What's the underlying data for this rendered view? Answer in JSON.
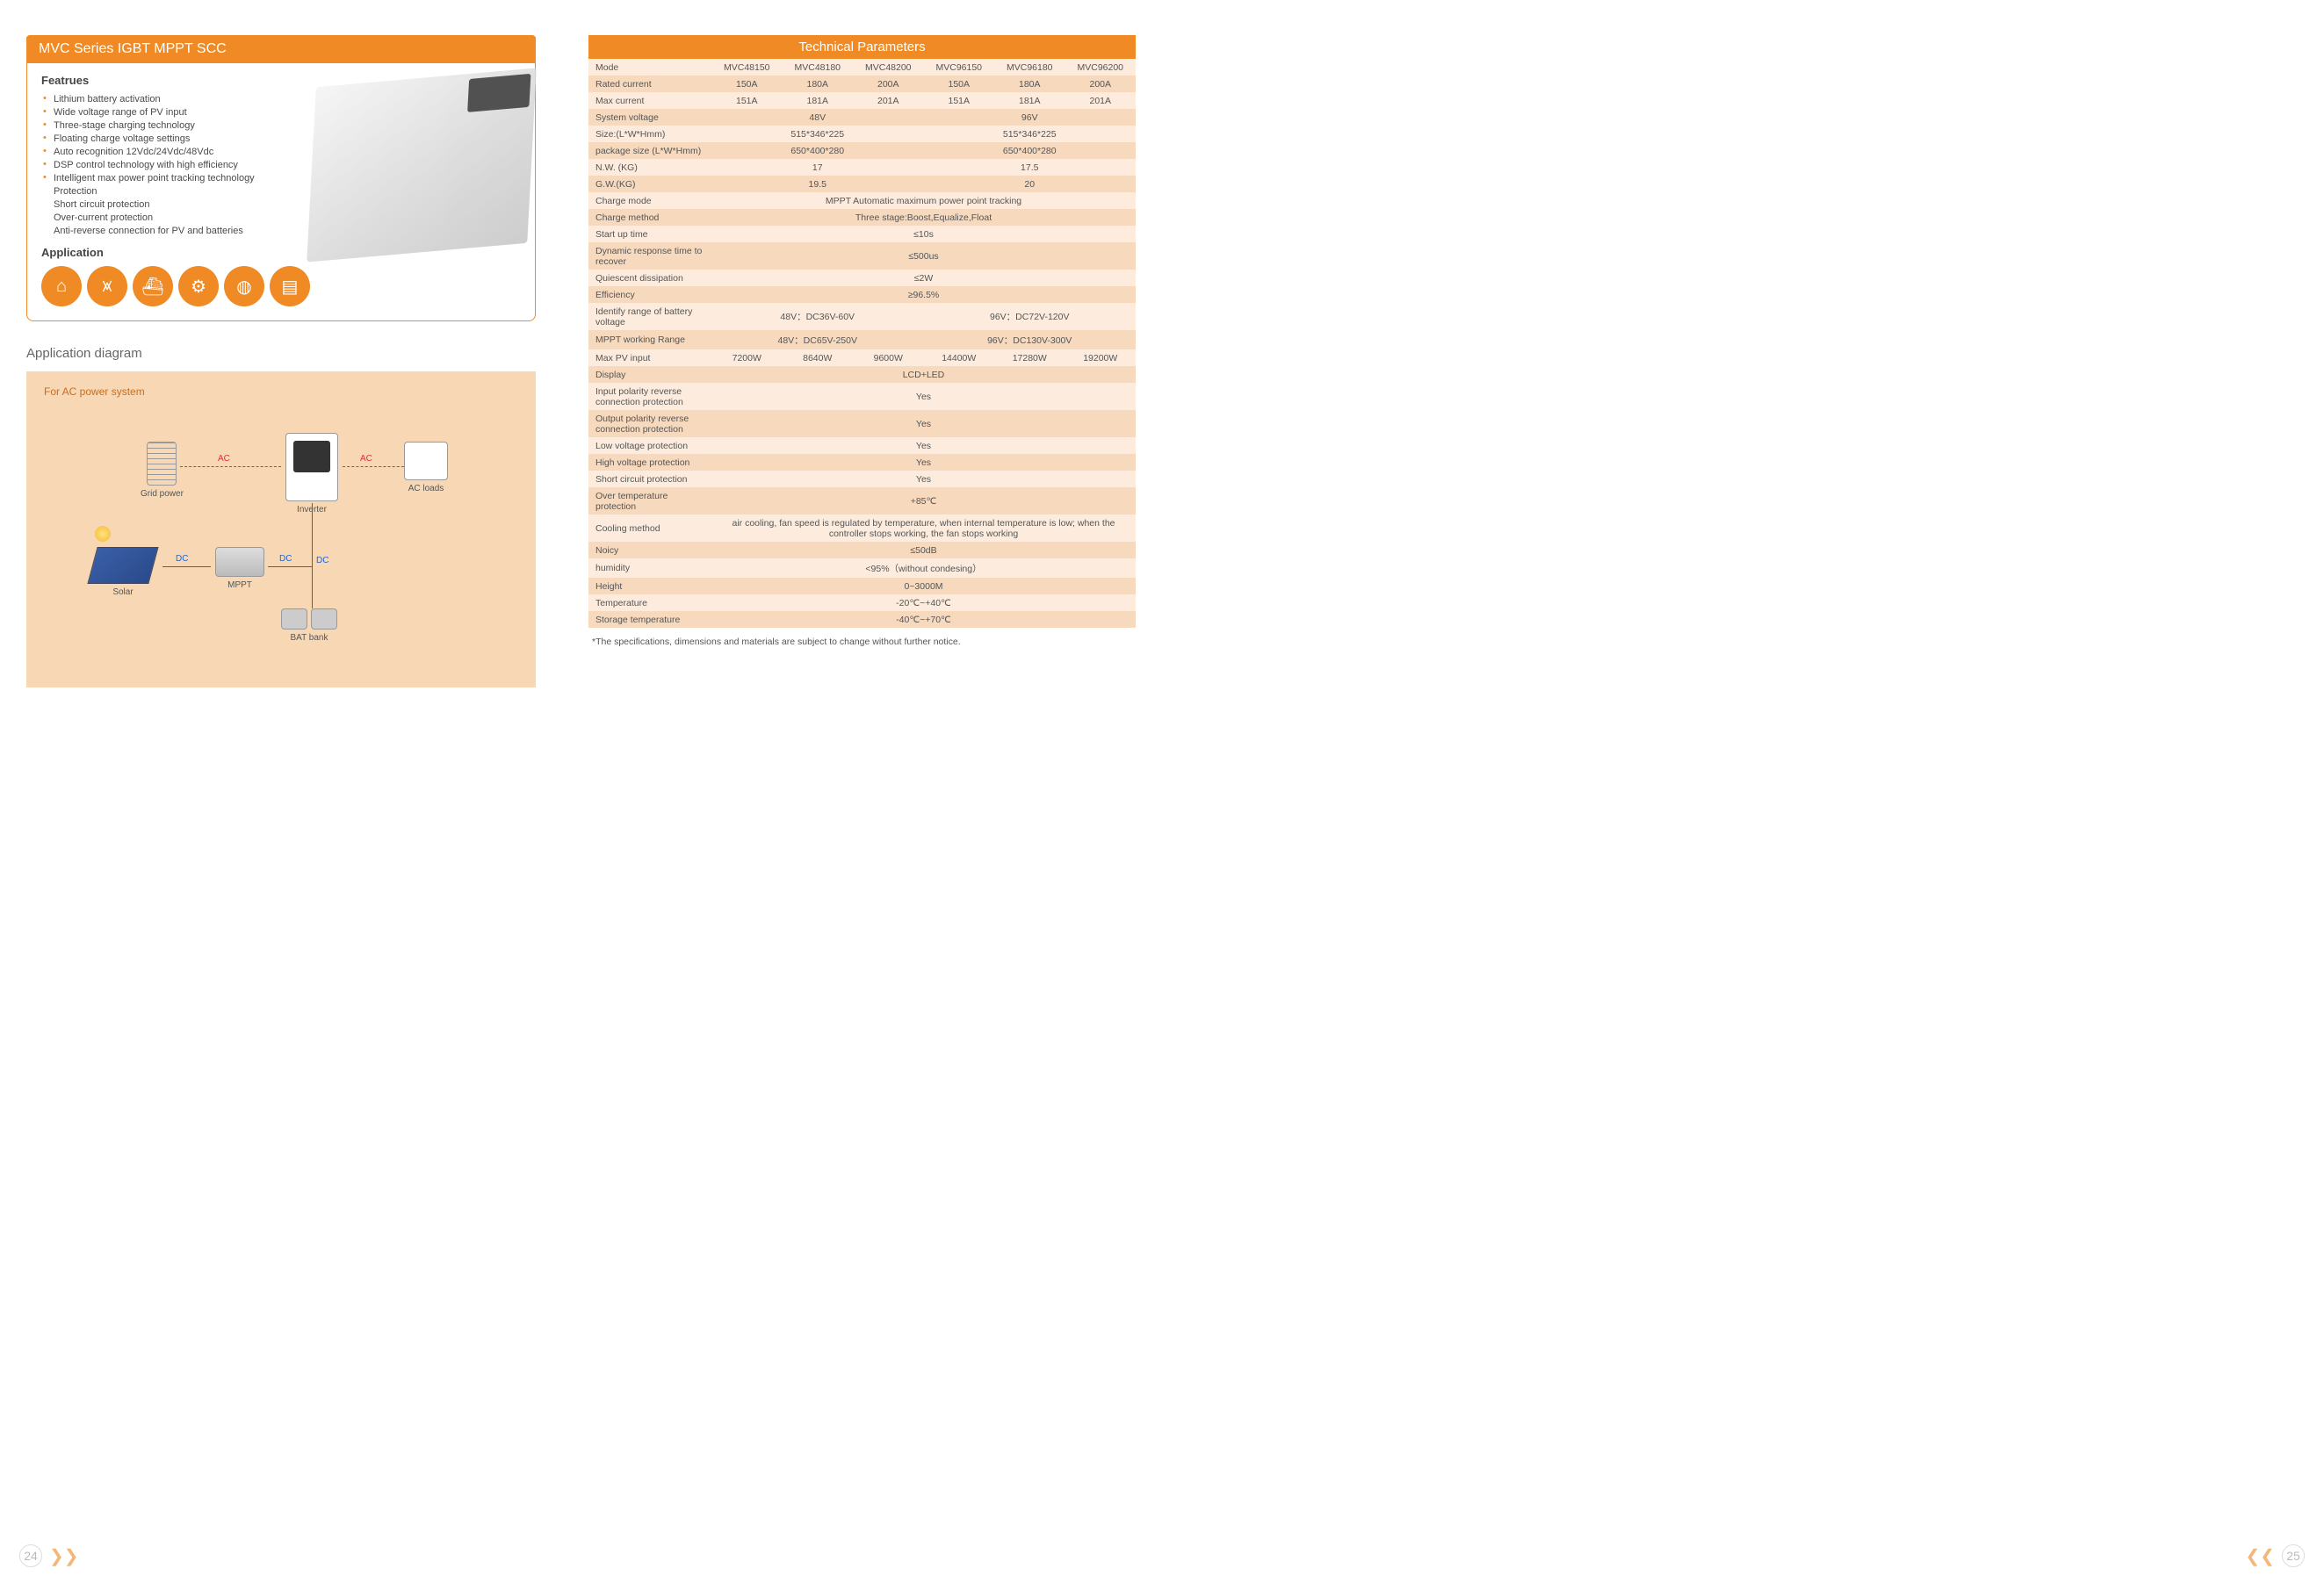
{
  "colors": {
    "accent": "#f08a24",
    "panel_bg": "#f8d7b5",
    "row_dark": "#f7d9bd",
    "row_light": "#fdecdd",
    "text": "#4a4a4a"
  },
  "left": {
    "title": "MVC Series IGBT MPPT SCC",
    "features_heading": "Featrues",
    "features": [
      "Lithium battery activation",
      "Wide voltage range of PV input",
      "Three-stage charging technology",
      "Floating charge voltage settings",
      "Auto recognition 12Vdc/24Vdc/48Vdc",
      "DSP control technology with high efficiency",
      "Intelligent max power point tracking technology"
    ],
    "features_nobullet": [
      "Protection",
      "Short circuit protection",
      "Over-current protection",
      "Anti-reverse connection for PV and batteries"
    ],
    "application_heading": "Application",
    "app_icons": [
      "home-icon",
      "tower-icon",
      "ship-icon",
      "factory-icon",
      "tank-icon",
      "building-icon"
    ],
    "diagram_heading": "Application diagram",
    "diagram_title": "For AC power system",
    "diagram_nodes": {
      "grid": "Grid power",
      "inverter": "Inverter",
      "acloads": "AC loads",
      "solar": "Solar",
      "mppt": "MPPT",
      "bat": "BAT bank",
      "ac": "AC",
      "dc": "DC"
    }
  },
  "table": {
    "title": "Technical Parameters",
    "models": [
      "MVC48150",
      "MVC48180",
      "MVC48200",
      "MVC96150",
      "MVC96180",
      "MVC96200"
    ],
    "rows": [
      {
        "label": "Mode",
        "cells": [
          "MVC48150",
          "MVC48180",
          "MVC48200",
          "MVC96150",
          "MVC96180",
          "MVC96200"
        ],
        "span": [
          1,
          1,
          1,
          1,
          1,
          1
        ]
      },
      {
        "label": "Rated current",
        "cells": [
          "150A",
          "180A",
          "200A",
          "150A",
          "180A",
          "200A"
        ],
        "span": [
          1,
          1,
          1,
          1,
          1,
          1
        ]
      },
      {
        "label": "Max current",
        "cells": [
          "151A",
          "181A",
          "201A",
          "151A",
          "181A",
          "201A"
        ],
        "span": [
          1,
          1,
          1,
          1,
          1,
          1
        ]
      },
      {
        "label": "System voltage",
        "cells": [
          "48V",
          "96V"
        ],
        "span": [
          3,
          3
        ]
      },
      {
        "label": "Size:(L*W*Hmm)",
        "cells": [
          "515*346*225",
          "515*346*225"
        ],
        "span": [
          3,
          3
        ]
      },
      {
        "label": "package size (L*W*Hmm)",
        "cells": [
          "650*400*280",
          "650*400*280"
        ],
        "span": [
          3,
          3
        ]
      },
      {
        "label": "N.W. (KG)",
        "cells": [
          "17",
          "17.5"
        ],
        "span": [
          3,
          3
        ]
      },
      {
        "label": "G.W.(KG)",
        "cells": [
          "19.5",
          "20"
        ],
        "span": [
          3,
          3
        ]
      },
      {
        "label": "Charge mode",
        "cells": [
          "MPPT Automatic maximum power point tracking"
        ],
        "span": [
          6
        ]
      },
      {
        "label": "Charge method",
        "cells": [
          "Three stage:Boost,Equalize,Float"
        ],
        "span": [
          6
        ]
      },
      {
        "label": "Start up time",
        "cells": [
          "≤10s"
        ],
        "span": [
          6
        ]
      },
      {
        "label": "Dynamic response time to recover",
        "cells": [
          "≤500us"
        ],
        "span": [
          6
        ]
      },
      {
        "label": "Quiescent dissipation",
        "cells": [
          "≤2W"
        ],
        "span": [
          6
        ]
      },
      {
        "label": "Efficiency",
        "cells": [
          "≥96.5%"
        ],
        "span": [
          6
        ]
      },
      {
        "label": "Identify range of battery voltage",
        "cells": [
          "48V：DC36V-60V",
          "96V：DC72V-120V"
        ],
        "span": [
          3,
          3
        ]
      },
      {
        "label": "MPPT working Range",
        "cells": [
          "48V：DC65V-250V",
          "96V：DC130V-300V"
        ],
        "span": [
          3,
          3
        ]
      },
      {
        "label": "Max PV input",
        "cells": [
          "7200W",
          "8640W",
          "9600W",
          "14400W",
          "17280W",
          "19200W"
        ],
        "span": [
          1,
          1,
          1,
          1,
          1,
          1
        ]
      },
      {
        "label": "Display",
        "cells": [
          "LCD+LED"
        ],
        "span": [
          6
        ]
      },
      {
        "label": "Input polarity reverse connection protection",
        "cells": [
          "Yes"
        ],
        "span": [
          6
        ]
      },
      {
        "label": "Output polarity reverse connection protection",
        "cells": [
          "Yes"
        ],
        "span": [
          6
        ]
      },
      {
        "label": "Low voltage protection",
        "cells": [
          "Yes"
        ],
        "span": [
          6
        ]
      },
      {
        "label": "High voltage protection",
        "cells": [
          "Yes"
        ],
        "span": [
          6
        ]
      },
      {
        "label": "Short circuit protection",
        "cells": [
          "Yes"
        ],
        "span": [
          6
        ]
      },
      {
        "label": "Over temperature protection",
        "cells": [
          "+85℃"
        ],
        "span": [
          6
        ]
      },
      {
        "label": "Cooling method",
        "cells": [
          "air cooling, fan speed is regulated by temperature, when internal temperature is low; when the controller stops working, the fan stops working"
        ],
        "span": [
          6
        ]
      },
      {
        "label": "Noicy",
        "cells": [
          "≤50dB"
        ],
        "span": [
          6
        ]
      },
      {
        "label": "humidity",
        "cells": [
          "<95%（without condesing）"
        ],
        "span": [
          6
        ]
      },
      {
        "label": "Height",
        "cells": [
          "0~3000M"
        ],
        "span": [
          6
        ]
      },
      {
        "label": "Temperature",
        "cells": [
          "-20℃~+40℃"
        ],
        "span": [
          6
        ]
      },
      {
        "label": "Storage temperature",
        "cells": [
          "-40℃~+70℃"
        ],
        "span": [
          6
        ]
      }
    ],
    "footnote": "*The specifications, dimensions and materials are subject to change without further notice."
  },
  "footer": {
    "left_page": "24",
    "right_page": "25"
  }
}
